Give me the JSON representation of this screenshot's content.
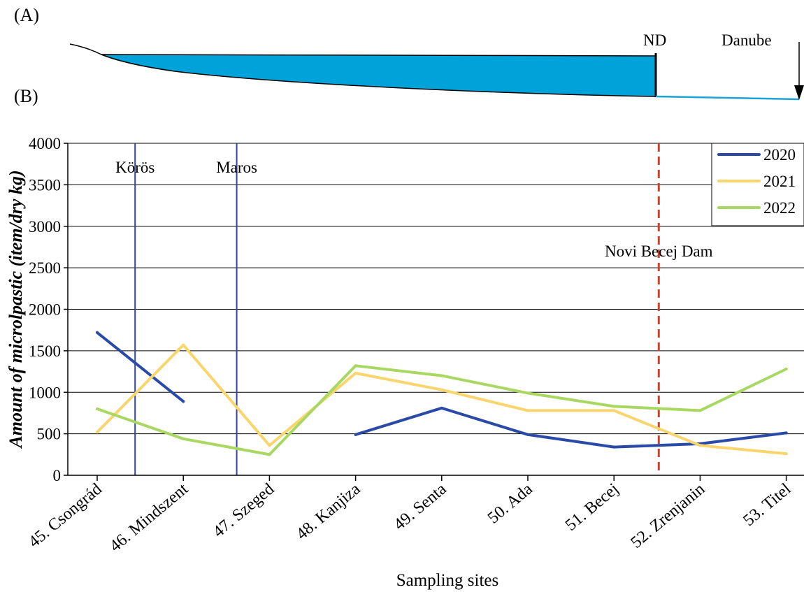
{
  "panels": {
    "a": "(A)",
    "b": "(B)"
  },
  "profile": {
    "fill_color": "#00a3d9",
    "river_line_color": "#1aa3d6",
    "dam_label": "ND",
    "outlet_label": "Danube"
  },
  "chart_data": {
    "type": "line",
    "xlabel": "Sampling sites",
    "ylabel": "Amount of microlpastic (item/dry kg)",
    "ylim": [
      0,
      4000
    ],
    "yticks": [
      "0",
      "500",
      "1000",
      "1500",
      "2000",
      "2500",
      "3000",
      "3500",
      "4000"
    ],
    "categories": [
      "45. Csongrád",
      "46. Mindszent",
      "47. Szeged",
      "48. Kanjiza",
      "49. Senta",
      "50. Ada",
      "51. Becej",
      "52. Zrenjanin",
      "53. Titel"
    ],
    "grid": true,
    "legend_position": "top-right",
    "series": [
      {
        "name": "2020",
        "color": "#2a4aa8",
        "values": [
          1720,
          890,
          null,
          490,
          810,
          490,
          340,
          380,
          510
        ]
      },
      {
        "name": "2021",
        "color": "#f9d56e",
        "values": [
          520,
          1570,
          360,
          1230,
          1030,
          780,
          780,
          360,
          260
        ]
      },
      {
        "name": "2022",
        "color": "#a9d862",
        "values": [
          800,
          440,
          250,
          1320,
          1200,
          990,
          830,
          780,
          1280
        ]
      }
    ],
    "tributaries": [
      {
        "label": "Körös",
        "after_index": 0,
        "fraction": 0.44,
        "color": "#3344a0"
      },
      {
        "label": "Maros",
        "after_index": 1,
        "fraction": 0.62,
        "color": "#3344a0"
      }
    ],
    "dam": {
      "label": "Novi Becej Dam",
      "after_index": 6,
      "fraction": 0.52,
      "color": "#e03a1e"
    }
  }
}
